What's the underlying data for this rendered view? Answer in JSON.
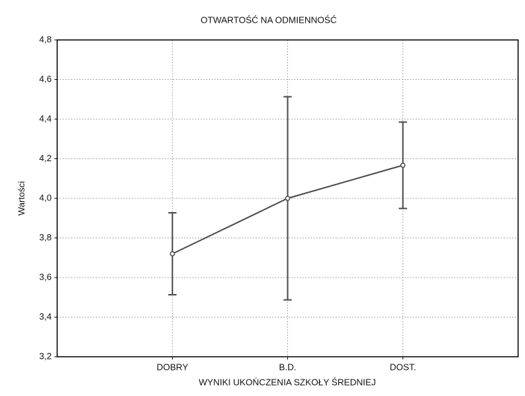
{
  "chart_data": {
    "type": "line",
    "title": "OTWARTOŚĆ NA ODMIENNOŚĆ",
    "xlabel": "WYNIKI UKOŃCZENIA SZKOŁY ŚREDNIEJ",
    "ylabel": "Wartości",
    "categories": [
      "DOBRY",
      "B.D.",
      "DOST."
    ],
    "series": [
      {
        "name": "Wartości",
        "color": "#4a4a4a",
        "values": [
          3.72,
          4.0,
          4.167
        ],
        "errors": [
          0.207,
          0.513,
          0.218
        ]
      }
    ],
    "ylim": [
      3.2,
      4.8
    ],
    "yticks": [
      {
        "value": 3.2,
        "label": "3,2"
      },
      {
        "value": 3.4,
        "label": "3,4"
      },
      {
        "value": 3.6,
        "label": "3,6"
      },
      {
        "value": 3.8,
        "label": "3,8"
      },
      {
        "value": 4.0,
        "label": "4,0"
      },
      {
        "value": 4.2,
        "label": "4,2"
      },
      {
        "value": 4.4,
        "label": "4,4"
      },
      {
        "value": 4.6,
        "label": "4,6"
      },
      {
        "value": 4.8,
        "label": "4,8"
      }
    ],
    "grid": true
  }
}
